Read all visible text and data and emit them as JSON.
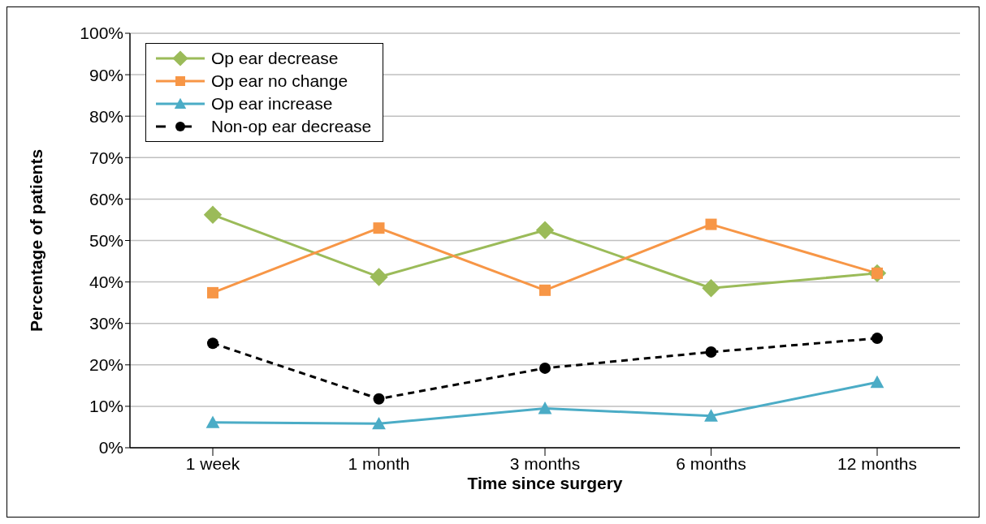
{
  "chart_data": {
    "type": "line",
    "xlabel": "Time since surgery",
    "ylabel": "Percentage of patients",
    "categories": [
      "1 week",
      "1 month",
      "3 months",
      "6 months",
      "12 months"
    ],
    "series": [
      {
        "name": "Op ear decrease",
        "color": "#9bbb59",
        "marker": "diamond",
        "line_style": "solid",
        "values": [
          56.2,
          41.2,
          52.5,
          38.5,
          42.1
        ]
      },
      {
        "name": "Op ear no change",
        "color": "#f79646",
        "marker": "square",
        "line_style": "solid",
        "values": [
          37.4,
          53.0,
          38.0,
          53.9,
          42.1
        ]
      },
      {
        "name": "Op ear increase",
        "color": "#4bacc6",
        "marker": "triangle",
        "line_style": "solid",
        "values": [
          6.1,
          5.8,
          9.5,
          7.7,
          15.8
        ]
      },
      {
        "name": "Non-op ear decrease",
        "color": "#000000",
        "marker": "circle",
        "line_style": "dashed",
        "values": [
          25.2,
          11.8,
          19.2,
          23.1,
          26.4
        ]
      }
    ],
    "ylim": [
      0,
      100
    ],
    "yticks": [
      {
        "value": 0,
        "label": "0%"
      },
      {
        "value": 10,
        "label": "10%"
      },
      {
        "value": 20,
        "label": "20%"
      },
      {
        "value": 30,
        "label": "30%"
      },
      {
        "value": 40,
        "label": "40%"
      },
      {
        "value": 50,
        "label": "50%"
      },
      {
        "value": 60,
        "label": "60%"
      },
      {
        "value": 70,
        "label": "70%"
      },
      {
        "value": 80,
        "label": "80%"
      },
      {
        "value": 90,
        "label": "90%"
      },
      {
        "value": 100,
        "label": "100%"
      }
    ],
    "grid": "y",
    "legend": "top left"
  }
}
